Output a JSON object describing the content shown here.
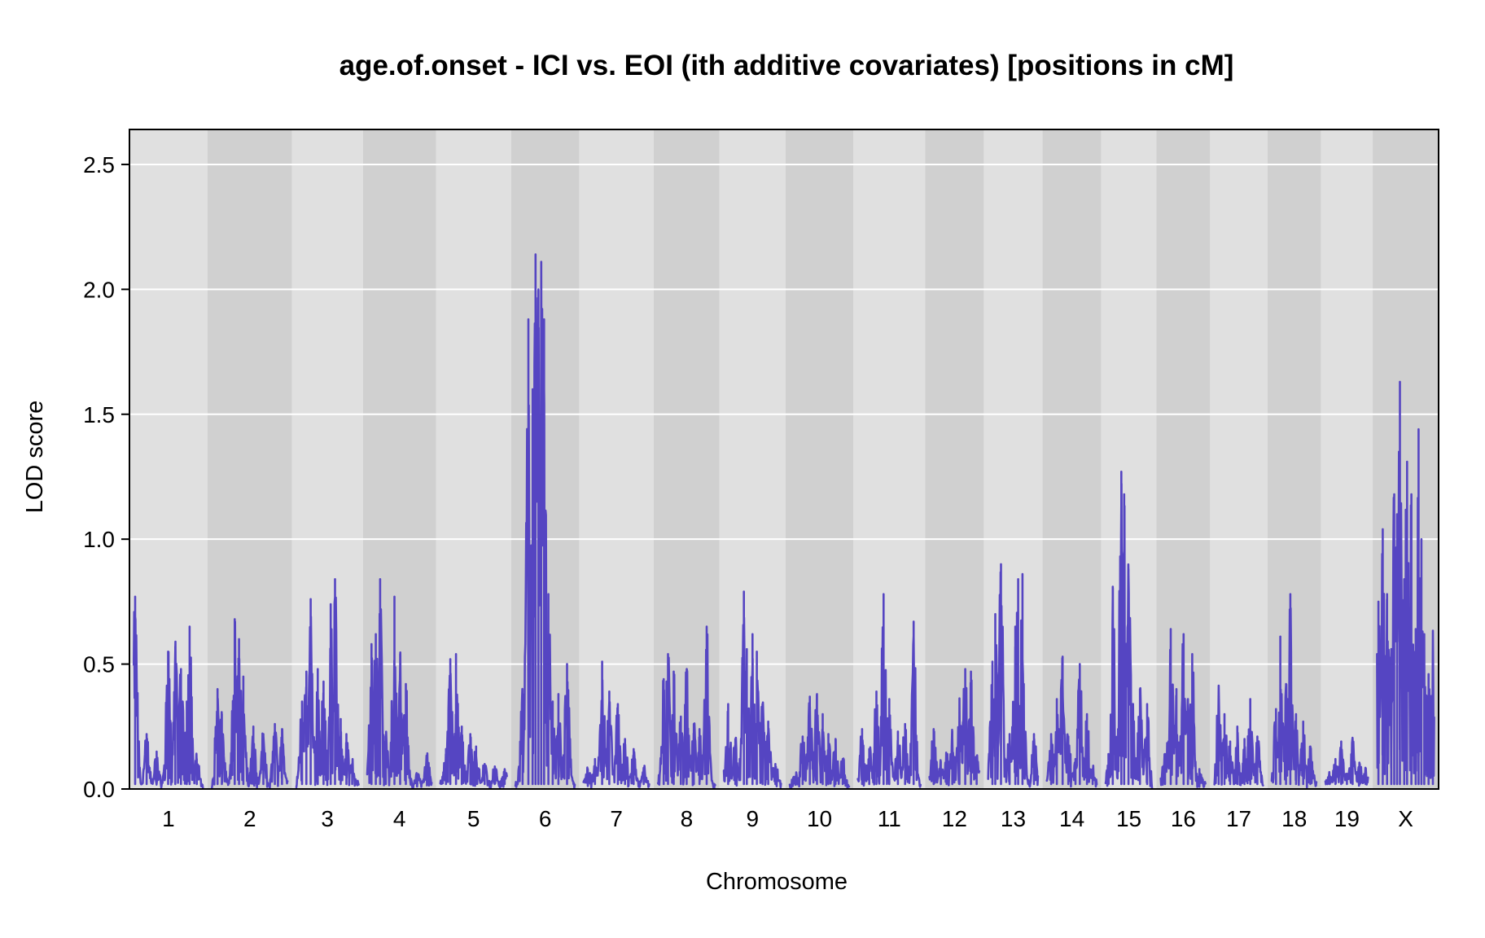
{
  "chart_data": {
    "type": "line",
    "title": "age.of.onset - ICI vs. EOI (ith additive covariates) [positions in cM]",
    "xlabel": "Chromosome",
    "ylabel": "LOD score",
    "ylim": [
      0,
      2.64
    ],
    "yticks": [
      "0.0",
      "0.5",
      "1.0",
      "1.5",
      "2.0",
      "2.5"
    ],
    "ytick_values": [
      0,
      0.5,
      1.0,
      1.5,
      2.0,
      2.5
    ],
    "grid": true,
    "legend": "none",
    "colors": {
      "line": "#5545c2",
      "band_light": "#e0e0e0",
      "band_dark": "#d0d0d0",
      "grid": "#ffffff",
      "frame": "#000000"
    },
    "chromosomes": [
      {
        "name": "1",
        "length": 97,
        "peaks": [
          [
            2,
            0.77
          ],
          [
            18,
            0.22
          ],
          [
            32,
            0.15
          ],
          [
            48,
            0.55
          ],
          [
            58,
            0.57
          ],
          [
            66,
            0.48
          ],
          [
            74,
            0.35
          ],
          [
            78,
            0.65
          ],
          [
            88,
            0.12
          ]
        ]
      },
      {
        "name": "2",
        "length": 106,
        "peaks": [
          [
            8,
            0.4
          ],
          [
            14,
            0.3
          ],
          [
            32,
            0.68
          ],
          [
            38,
            0.6
          ],
          [
            44,
            0.45
          ],
          [
            58,
            0.25
          ],
          [
            72,
            0.22
          ],
          [
            88,
            0.26
          ],
          [
            98,
            0.24
          ]
        ]
      },
      {
        "name": "3",
        "length": 87,
        "peaks": [
          [
            8,
            0.35
          ],
          [
            14,
            0.47
          ],
          [
            20,
            0.76
          ],
          [
            30,
            0.48
          ],
          [
            38,
            0.43
          ],
          [
            48,
            0.74
          ],
          [
            54,
            0.84
          ],
          [
            62,
            0.28
          ],
          [
            70,
            0.22
          ],
          [
            78,
            0.1
          ]
        ]
      },
      {
        "name": "4",
        "length": 90,
        "peaks": [
          [
            6,
            0.58
          ],
          [
            12,
            0.62
          ],
          [
            18,
            0.84
          ],
          [
            26,
            0.21
          ],
          [
            38,
            0.77
          ],
          [
            46,
            0.54
          ],
          [
            54,
            0.42
          ],
          [
            70,
            0.05
          ],
          [
            84,
            0.14
          ]
        ]
      },
      {
        "name": "5",
        "length": 93,
        "peaks": [
          [
            8,
            0.16
          ],
          [
            14,
            0.52
          ],
          [
            22,
            0.54
          ],
          [
            30,
            0.25
          ],
          [
            42,
            0.22
          ],
          [
            50,
            0.17
          ],
          [
            62,
            0.1
          ],
          [
            76,
            0.08
          ],
          [
            90,
            0.07
          ]
        ]
      },
      {
        "name": "6",
        "length": 83,
        "peaks": [
          [
            10,
            0.38
          ],
          [
            18,
            1.88
          ],
          [
            24,
            1.6
          ],
          [
            28,
            2.14
          ],
          [
            32,
            2.0
          ],
          [
            36,
            2.11
          ],
          [
            40,
            1.88
          ],
          [
            46,
            0.78
          ],
          [
            52,
            0.35
          ],
          [
            60,
            0.38
          ],
          [
            72,
            0.5
          ]
        ]
      },
      {
        "name": "7",
        "length": 92,
        "peaks": [
          [
            6,
            0.08
          ],
          [
            16,
            0.12
          ],
          [
            26,
            0.51
          ],
          [
            36,
            0.39
          ],
          [
            48,
            0.34
          ],
          [
            58,
            0.2
          ],
          [
            70,
            0.16
          ],
          [
            84,
            0.08
          ]
        ]
      },
      {
        "name": "8",
        "length": 80,
        "peaks": [
          [
            8,
            0.44
          ],
          [
            14,
            0.54
          ],
          [
            22,
            0.47
          ],
          [
            32,
            0.29
          ],
          [
            40,
            0.47
          ],
          [
            50,
            0.26
          ],
          [
            58,
            0.24
          ],
          [
            68,
            0.65
          ]
        ]
      },
      {
        "name": "9",
        "length": 80,
        "peaks": [
          [
            6,
            0.34
          ],
          [
            16,
            0.2
          ],
          [
            28,
            0.79
          ],
          [
            32,
            0.56
          ],
          [
            40,
            0.62
          ],
          [
            46,
            0.55
          ],
          [
            54,
            0.34
          ],
          [
            62,
            0.27
          ],
          [
            72,
            0.1
          ]
        ]
      },
      {
        "name": "10",
        "length": 83,
        "peaks": [
          [
            8,
            0.05
          ],
          [
            18,
            0.21
          ],
          [
            28,
            0.37
          ],
          [
            38,
            0.38
          ],
          [
            46,
            0.3
          ],
          [
            54,
            0.22
          ],
          [
            64,
            0.2
          ],
          [
            74,
            0.12
          ]
        ]
      },
      {
        "name": "11",
        "length": 88,
        "peaks": [
          [
            6,
            0.24
          ],
          [
            16,
            0.16
          ],
          [
            26,
            0.39
          ],
          [
            36,
            0.78
          ],
          [
            44,
            0.36
          ],
          [
            56,
            0.23
          ],
          [
            66,
            0.26
          ],
          [
            78,
            0.67
          ]
        ]
      },
      {
        "name": "12",
        "length": 70,
        "peaks": [
          [
            6,
            0.24
          ],
          [
            16,
            0.11
          ],
          [
            24,
            0.13
          ],
          [
            32,
            0.23
          ],
          [
            42,
            0.34
          ],
          [
            50,
            0.48
          ],
          [
            58,
            0.47
          ],
          [
            66,
            0.13
          ]
        ]
      },
      {
        "name": "13",
        "length": 70,
        "peaks": [
          [
            6,
            0.51
          ],
          [
            10,
            0.7
          ],
          [
            18,
            0.9
          ],
          [
            30,
            0.22
          ],
          [
            38,
            0.65
          ],
          [
            42,
            0.84
          ],
          [
            48,
            0.86
          ],
          [
            64,
            0.22
          ]
        ]
      },
      {
        "name": "14",
        "length": 70,
        "peaks": [
          [
            6,
            0.22
          ],
          [
            14,
            0.36
          ],
          [
            22,
            0.53
          ],
          [
            30,
            0.21
          ],
          [
            40,
            0.12
          ],
          [
            46,
            0.5
          ],
          [
            56,
            0.3
          ],
          [
            64,
            0.08
          ]
        ]
      },
      {
        "name": "15",
        "length": 65,
        "peaks": [
          [
            4,
            0.14
          ],
          [
            10,
            0.81
          ],
          [
            22,
            1.27
          ],
          [
            26,
            1.18
          ],
          [
            32,
            0.88
          ],
          [
            38,
            0.34
          ],
          [
            48,
            0.4
          ],
          [
            58,
            0.34
          ]
        ]
      },
      {
        "name": "16",
        "length": 63,
        "peaks": [
          [
            6,
            0.14
          ],
          [
            14,
            0.64
          ],
          [
            22,
            0.4
          ],
          [
            32,
            0.62
          ],
          [
            38,
            0.36
          ],
          [
            44,
            0.54
          ],
          [
            54,
            0.08
          ]
        ]
      },
      {
        "name": "17",
        "length": 68,
        "peaks": [
          [
            6,
            0.41
          ],
          [
            14,
            0.3
          ],
          [
            22,
            0.19
          ],
          [
            32,
            0.25
          ],
          [
            42,
            0.2
          ],
          [
            50,
            0.36
          ],
          [
            60,
            0.21
          ]
        ]
      },
      {
        "name": "18",
        "length": 63,
        "peaks": [
          [
            6,
            0.32
          ],
          [
            12,
            0.61
          ],
          [
            20,
            0.42
          ],
          [
            26,
            0.78
          ],
          [
            34,
            0.3
          ],
          [
            44,
            0.27
          ],
          [
            54,
            0.17
          ]
        ]
      },
      {
        "name": "19",
        "length": 60,
        "peaks": [
          [
            6,
            0.05
          ],
          [
            14,
            0.12
          ],
          [
            22,
            0.19
          ],
          [
            30,
            0.06
          ],
          [
            38,
            0.2
          ],
          [
            48,
            0.1
          ],
          [
            56,
            0.07
          ]
        ]
      },
      {
        "name": "X",
        "length": 80,
        "peaks": [
          [
            2,
            0.75
          ],
          [
            8,
            1.04
          ],
          [
            14,
            0.78
          ],
          [
            20,
            0.56
          ],
          [
            24,
            1.18
          ],
          [
            28,
            1.1
          ],
          [
            32,
            1.63
          ],
          [
            38,
            0.84
          ],
          [
            42,
            1.31
          ],
          [
            48,
            1.18
          ],
          [
            54,
            0.64
          ],
          [
            58,
            1.44
          ],
          [
            62,
            1.0
          ],
          [
            66,
            0.62
          ],
          [
            72,
            0.46
          ],
          [
            78,
            0.62
          ]
        ]
      }
    ]
  }
}
